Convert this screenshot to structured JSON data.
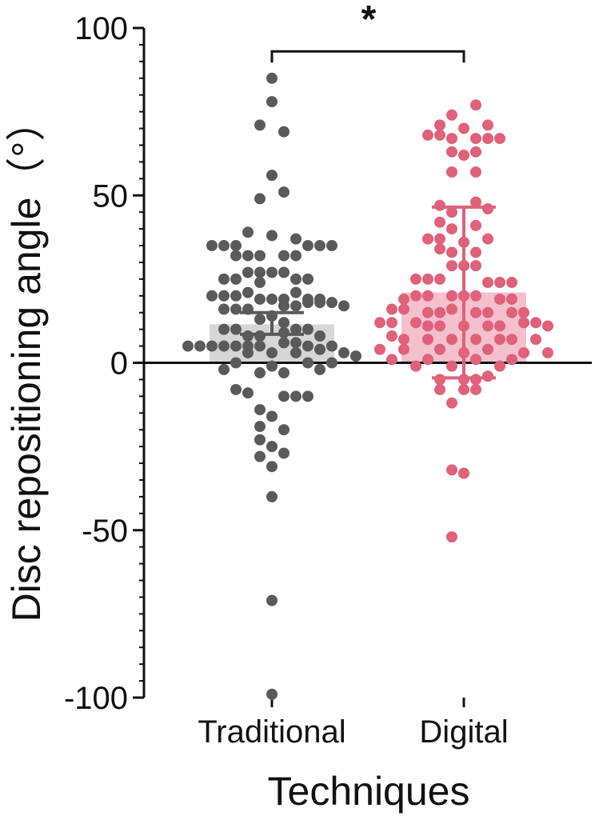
{
  "chart_data": {
    "type": "scatter",
    "subtype": "bar-with-points",
    "xlabel": "Techniques",
    "ylabel": "Disc repositioning angle（°）",
    "ylim": [
      -100,
      100
    ],
    "yticks": [
      100,
      50,
      0,
      -50,
      -100
    ],
    "ytick_labels": [
      "100",
      "50",
      "0",
      "-50",
      "-100"
    ],
    "minor_tick_step": 5,
    "zero_line": true,
    "grid": false,
    "legend": "none",
    "significance": {
      "label": "*",
      "between": [
        "Traditional",
        "Digital"
      ],
      "y": 93
    },
    "categories": [
      "Traditional",
      "Digital"
    ],
    "series": [
      {
        "category": "Traditional",
        "mean": 11.5,
        "error_low": 8.5,
        "error_high": 15,
        "error_type": "mean-with-error",
        "color_point": "#5a5a5a",
        "color_bar": "#d6d6d6",
        "points": [
          {
            "dx": 0,
            "y": 85
          },
          {
            "dx": 0,
            "y": 78
          },
          {
            "dx": -1,
            "y": 71
          },
          {
            "dx": 1,
            "y": 69
          },
          {
            "dx": 0,
            "y": 56
          },
          {
            "dx": 1,
            "y": 51
          },
          {
            "dx": -1,
            "y": 49
          },
          {
            "dx": -2,
            "y": 39
          },
          {
            "dx": 0,
            "y": 38
          },
          {
            "dx": 2,
            "y": 37
          },
          {
            "dx": -5,
            "y": 35
          },
          {
            "dx": -4,
            "y": 35
          },
          {
            "dx": -3,
            "y": 35
          },
          {
            "dx": 3,
            "y": 35
          },
          {
            "dx": 4,
            "y": 35
          },
          {
            "dx": 5,
            "y": 35
          },
          {
            "dx": -3,
            "y": 32
          },
          {
            "dx": -2,
            "y": 32
          },
          {
            "dx": -1,
            "y": 32
          },
          {
            "dx": 1,
            "y": 32
          },
          {
            "dx": 2,
            "y": 32
          },
          {
            "dx": -2,
            "y": 27
          },
          {
            "dx": -1,
            "y": 27
          },
          {
            "dx": 0,
            "y": 27
          },
          {
            "dx": 1,
            "y": 27
          },
          {
            "dx": -4,
            "y": 25
          },
          {
            "dx": -3,
            "y": 25
          },
          {
            "dx": -1,
            "y": 24
          },
          {
            "dx": 2,
            "y": 25
          },
          {
            "dx": 3,
            "y": 25
          },
          {
            "dx": -2,
            "y": 21
          },
          {
            "dx": 2,
            "y": 21
          },
          {
            "dx": -5,
            "y": 20
          },
          {
            "dx": -4,
            "y": 20
          },
          {
            "dx": -3,
            "y": 20
          },
          {
            "dx": -1,
            "y": 19
          },
          {
            "dx": 0,
            "y": 19
          },
          {
            "dx": 1,
            "y": 19
          },
          {
            "dx": 3,
            "y": 19
          },
          {
            "dx": 4,
            "y": 19
          },
          {
            "dx": -4,
            "y": 16
          },
          {
            "dx": -3,
            "y": 16
          },
          {
            "dx": -2,
            "y": 16
          },
          {
            "dx": 1,
            "y": 17
          },
          {
            "dx": 2,
            "y": 17
          },
          {
            "dx": 3,
            "y": 18
          },
          {
            "dx": 4,
            "y": 18
          },
          {
            "dx": 5,
            "y": 18
          },
          {
            "dx": 6,
            "y": 17
          },
          {
            "dx": -1,
            "y": 13
          },
          {
            "dx": 0,
            "y": 14
          },
          {
            "dx": 1,
            "y": 12
          },
          {
            "dx": -4,
            "y": 10
          },
          {
            "dx": -3,
            "y": 10
          },
          {
            "dx": 2,
            "y": 10
          },
          {
            "dx": 3,
            "y": 10
          },
          {
            "dx": -2,
            "y": 8
          },
          {
            "dx": -1,
            "y": 8
          },
          {
            "dx": 1,
            "y": 9
          },
          {
            "dx": 4,
            "y": 8
          },
          {
            "dx": -7,
            "y": 5
          },
          {
            "dx": -6,
            "y": 5
          },
          {
            "dx": -5,
            "y": 5
          },
          {
            "dx": -4,
            "y": 5
          },
          {
            "dx": -3,
            "y": 5
          },
          {
            "dx": -2,
            "y": 5
          },
          {
            "dx": -1,
            "y": 5
          },
          {
            "dx": 1,
            "y": 6
          },
          {
            "dx": 2,
            "y": 6
          },
          {
            "dx": 3,
            "y": 5
          },
          {
            "dx": 4,
            "y": 4
          },
          {
            "dx": 5,
            "y": 5
          },
          {
            "dx": -2,
            "y": 3
          },
          {
            "dx": 0,
            "y": 3
          },
          {
            "dx": 2,
            "y": 3
          },
          {
            "dx": 6,
            "y": 3
          },
          {
            "dx": 7,
            "y": 2
          },
          {
            "dx": -3,
            "y": 0
          },
          {
            "dx": 0,
            "y": -1
          },
          {
            "dx": 3,
            "y": 0
          },
          {
            "dx": 5,
            "y": 0
          },
          {
            "dx": -4,
            "y": -2
          },
          {
            "dx": -1,
            "y": -3
          },
          {
            "dx": 1,
            "y": -3
          },
          {
            "dx": 4,
            "y": -2
          },
          {
            "dx": -3,
            "y": -8
          },
          {
            "dx": -2,
            "y": -9
          },
          {
            "dx": 1,
            "y": -10
          },
          {
            "dx": 2,
            "y": -10
          },
          {
            "dx": 3,
            "y": -10
          },
          {
            "dx": -1,
            "y": -14
          },
          {
            "dx": 0,
            "y": -16
          },
          {
            "dx": -1,
            "y": -19
          },
          {
            "dx": 1,
            "y": -20
          },
          {
            "dx": -1,
            "y": -23
          },
          {
            "dx": 0,
            "y": -25
          },
          {
            "dx": -1,
            "y": -28
          },
          {
            "dx": 1,
            "y": -27
          },
          {
            "dx": 0,
            "y": -31
          },
          {
            "dx": 0,
            "y": -40
          },
          {
            "dx": 0,
            "y": -71
          },
          {
            "dx": 0,
            "y": -99
          }
        ]
      },
      {
        "category": "Digital",
        "mean": 21,
        "error_low": -4.5,
        "error_high": 46.5,
        "error_type": "mean-with-error",
        "color_point": "#e0617a",
        "color_bar": "#f3c0cb",
        "points": [
          {
            "dx": -1,
            "y": 74
          },
          {
            "dx": 1,
            "y": 77
          },
          {
            "dx": -2,
            "y": 71
          },
          {
            "dx": 0,
            "y": 70
          },
          {
            "dx": 2,
            "y": 71
          },
          {
            "dx": -3,
            "y": 68
          },
          {
            "dx": -2,
            "y": 68
          },
          {
            "dx": -1,
            "y": 67
          },
          {
            "dx": 1,
            "y": 67
          },
          {
            "dx": 2,
            "y": 67
          },
          {
            "dx": 3,
            "y": 67
          },
          {
            "dx": -1,
            "y": 63
          },
          {
            "dx": 0,
            "y": 62
          },
          {
            "dx": 1,
            "y": 63
          },
          {
            "dx": -1,
            "y": 57
          },
          {
            "dx": 1,
            "y": 57
          },
          {
            "dx": -2,
            "y": 47
          },
          {
            "dx": -1,
            "y": 45
          },
          {
            "dx": 1,
            "y": 48
          },
          {
            "dx": 2,
            "y": 46
          },
          {
            "dx": -2,
            "y": 42
          },
          {
            "dx": -1,
            "y": 40
          },
          {
            "dx": 1,
            "y": 41
          },
          {
            "dx": -3,
            "y": 37
          },
          {
            "dx": -2,
            "y": 37
          },
          {
            "dx": 0,
            "y": 36
          },
          {
            "dx": 2,
            "y": 37
          },
          {
            "dx": -2,
            "y": 34
          },
          {
            "dx": -1,
            "y": 33
          },
          {
            "dx": 1,
            "y": 33
          },
          {
            "dx": -1,
            "y": 29
          },
          {
            "dx": 0,
            "y": 29
          },
          {
            "dx": 1,
            "y": 29
          },
          {
            "dx": -4,
            "y": 25
          },
          {
            "dx": -3,
            "y": 25
          },
          {
            "dx": -2,
            "y": 25
          },
          {
            "dx": 2,
            "y": 24
          },
          {
            "dx": 3,
            "y": 24
          },
          {
            "dx": 4,
            "y": 24
          },
          {
            "dx": -5,
            "y": 19
          },
          {
            "dx": -4,
            "y": 20
          },
          {
            "dx": -3,
            "y": 20
          },
          {
            "dx": -1,
            "y": 20
          },
          {
            "dx": 0,
            "y": 20
          },
          {
            "dx": 1,
            "y": 20
          },
          {
            "dx": 3,
            "y": 19
          },
          {
            "dx": 4,
            "y": 19
          },
          {
            "dx": -6,
            "y": 16
          },
          {
            "dx": -5,
            "y": 16
          },
          {
            "dx": -3,
            "y": 15
          },
          {
            "dx": -2,
            "y": 15
          },
          {
            "dx": -1,
            "y": 16
          },
          {
            "dx": 1,
            "y": 15
          },
          {
            "dx": 2,
            "y": 15
          },
          {
            "dx": 4,
            "y": 15
          },
          {
            "dx": 5,
            "y": 15
          },
          {
            "dx": -7,
            "y": 12
          },
          {
            "dx": -6,
            "y": 12
          },
          {
            "dx": -4,
            "y": 12
          },
          {
            "dx": -3,
            "y": 11
          },
          {
            "dx": -2,
            "y": 11
          },
          {
            "dx": 0,
            "y": 11
          },
          {
            "dx": 2,
            "y": 11
          },
          {
            "dx": 3,
            "y": 11
          },
          {
            "dx": 5,
            "y": 12
          },
          {
            "dx": 6,
            "y": 12
          },
          {
            "dx": 7,
            "y": 11
          },
          {
            "dx": -6,
            "y": 8
          },
          {
            "dx": -5,
            "y": 7
          },
          {
            "dx": -3,
            "y": 7
          },
          {
            "dx": -1,
            "y": 7
          },
          {
            "dx": 1,
            "y": 7
          },
          {
            "dx": 3,
            "y": 7
          },
          {
            "dx": 4,
            "y": 7
          },
          {
            "dx": 6,
            "y": 7
          },
          {
            "dx": -7,
            "y": 4
          },
          {
            "dx": -5,
            "y": 4
          },
          {
            "dx": -2,
            "y": 4
          },
          {
            "dx": 0,
            "y": 3
          },
          {
            "dx": 2,
            "y": 4
          },
          {
            "dx": 5,
            "y": 3
          },
          {
            "dx": 7,
            "y": 3
          },
          {
            "dx": -6,
            "y": 1
          },
          {
            "dx": -3,
            "y": 1
          },
          {
            "dx": 1,
            "y": 1
          },
          {
            "dx": 4,
            "y": 1
          },
          {
            "dx": -4,
            "y": -1
          },
          {
            "dx": -1,
            "y": -1
          },
          {
            "dx": 3,
            "y": -1
          },
          {
            "dx": -2,
            "y": -5
          },
          {
            "dx": 0,
            "y": -5
          },
          {
            "dx": 1,
            "y": -5
          },
          {
            "dx": 2,
            "y": -4
          },
          {
            "dx": -2,
            "y": -8
          },
          {
            "dx": 0,
            "y": -8
          },
          {
            "dx": 1,
            "y": -8
          },
          {
            "dx": -1,
            "y": -12
          },
          {
            "dx": -1,
            "y": -32
          },
          {
            "dx": 0,
            "y": -33
          },
          {
            "dx": -1,
            "y": -52
          }
        ]
      }
    ]
  }
}
